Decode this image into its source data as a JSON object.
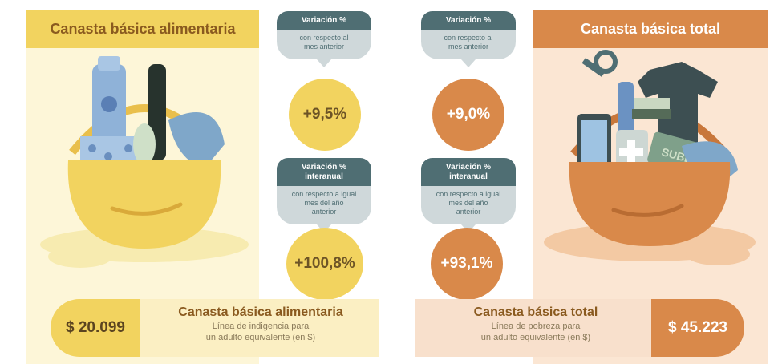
{
  "left": {
    "title": "Canasta básica alimentaria",
    "price": "$ 20.099",
    "bar_title": "Canasta básica alimentaria",
    "bar_sub_1": "Línea de indigencia para",
    "bar_sub_2": "un adulto equivalente (en $)",
    "monthly": {
      "head": "Variación %",
      "body_1": "con respecto al",
      "body_2": "mes anterior",
      "value": "+9,5%"
    },
    "yearly": {
      "head_1": "Variación %",
      "head_2": "interanual",
      "body_1": "con respecto a igual",
      "body_2": "mes del año",
      "body_3": "anterior",
      "value": "+100,8%"
    }
  },
  "right": {
    "title": "Canasta básica total",
    "price": "$ 45.223",
    "bar_title": "Canasta básica total",
    "bar_sub_1": "Línea de pobreza para",
    "bar_sub_2": "un adulto equivalente (en $)",
    "monthly": {
      "head": "Variación %",
      "body_1": "con respecto al",
      "body_2": "mes anterior",
      "value": "+9,0%"
    },
    "yearly": {
      "head_1": "Variación %",
      "head_2": "interanual",
      "body_1": "con respecto a igual",
      "body_2": "mes del año",
      "body_3": "anterior",
      "value": "+93,1%"
    },
    "card_text": "SUBE"
  },
  "colors": {
    "yellow": "#f2d35f",
    "orange": "#d9894a",
    "slate": "#4f6e73"
  }
}
